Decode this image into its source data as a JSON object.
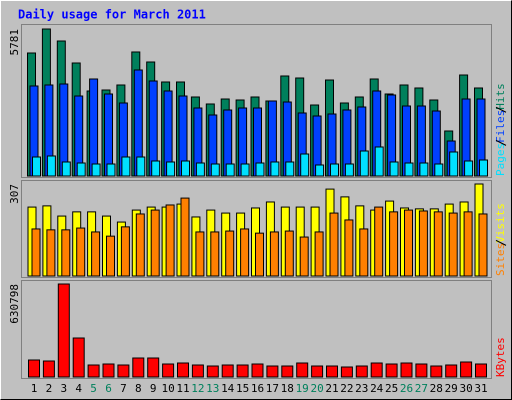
{
  "chart_data": [
    {
      "type": "bar",
      "title": "Daily usage for March 2011",
      "ylim": [
        0,
        5781
      ],
      "yticks": [
        5781
      ],
      "series": [
        {
          "name": "Hits",
          "color": "#00805c",
          "values": [
            4837,
            5781,
            5309,
            4444,
            3343,
            3382,
            3579,
            4877,
            4483,
            3697,
            3697,
            3107,
            2832,
            3028,
            2989,
            3107,
            2950,
            3933,
            3854,
            2792,
            3775,
            2871,
            3107,
            3815,
            3225,
            3579,
            3461,
            2989,
            1770,
            3972,
            3461
          ]
        },
        {
          "name": "Files",
          "color": "#0040ff",
          "values": [
            3540,
            3579,
            3618,
            3146,
            3815,
            3225,
            2871,
            4169,
            3736,
            3343,
            3146,
            2674,
            2399,
            2596,
            2674,
            2674,
            2950,
            2910,
            2478,
            2360,
            2438,
            2596,
            2714,
            3343,
            3186,
            2753,
            2753,
            2556,
            1376,
            3028,
            3028
          ]
        },
        {
          "name": "Pages",
          "color": "#00e0ff",
          "values": [
            747,
            787,
            551,
            511,
            472,
            472,
            747,
            747,
            590,
            551,
            590,
            511,
            472,
            472,
            472,
            511,
            551,
            551,
            865,
            433,
            472,
            472,
            983,
            1141,
            551,
            511,
            511,
            472,
            944,
            590,
            629
          ]
        }
      ]
    },
    {
      "type": "bar",
      "ylim": [
        0,
        307
      ],
      "yticks": [
        307
      ],
      "series": [
        {
          "name": "Visits",
          "color": "#ffff00",
          "values": [
            230,
            234,
            200,
            214,
            214,
            200,
            180,
            220,
            230,
            230,
            240,
            197,
            220,
            210,
            210,
            227,
            247,
            230,
            230,
            230,
            290,
            264,
            234,
            220,
            250,
            227,
            224,
            224,
            240,
            247,
            307
          ]
        },
        {
          "name": "Sites",
          "color": "#ff8000",
          "values": [
            157,
            154,
            154,
            160,
            147,
            133,
            164,
            207,
            220,
            237,
            260,
            147,
            147,
            150,
            157,
            143,
            147,
            150,
            130,
            147,
            210,
            187,
            157,
            230,
            214,
            220,
            217,
            214,
            210,
            214,
            207
          ]
        }
      ]
    },
    {
      "type": "bar",
      "ylim": [
        0,
        630798
      ],
      "yticks": [
        630798
      ],
      "categories": [
        "1",
        "2",
        "3",
        "4",
        "5",
        "6",
        "7",
        "8",
        "9",
        "10",
        "11",
        "12",
        "13",
        "14",
        "15",
        "16",
        "17",
        "18",
        "19",
        "20",
        "21",
        "22",
        "23",
        "24",
        "25",
        "26",
        "27",
        "28",
        "29",
        "30",
        "31"
      ],
      "category_colors": [
        "#000000",
        "#000000",
        "#000000",
        "#000000",
        "#00805c",
        "#00805c",
        "#000000",
        "#000000",
        "#000000",
        "#000000",
        "#000000",
        "#00805c",
        "#00805c",
        "#000000",
        "#000000",
        "#000000",
        "#000000",
        "#000000",
        "#00805c",
        "#00805c",
        "#000000",
        "#000000",
        "#000000",
        "#000000",
        "#000000",
        "#00805c",
        "#00805c",
        "#000000",
        "#000000",
        "#000000",
        "#000000"
      ],
      "series": [
        {
          "name": "KBytes",
          "color": "#ff0000",
          "values": [
            115311,
            108528,
            630798,
            264537,
            81396,
            88179,
            81396,
            128877,
            128877,
            88179,
            94962,
            81396,
            74613,
            81396,
            81396,
            88179,
            74613,
            74613,
            94962,
            74613,
            74613,
            67830,
            74613,
            94962,
            88179,
            94962,
            88179,
            74613,
            81396,
            101745,
            88179
          ]
        }
      ]
    }
  ]
}
